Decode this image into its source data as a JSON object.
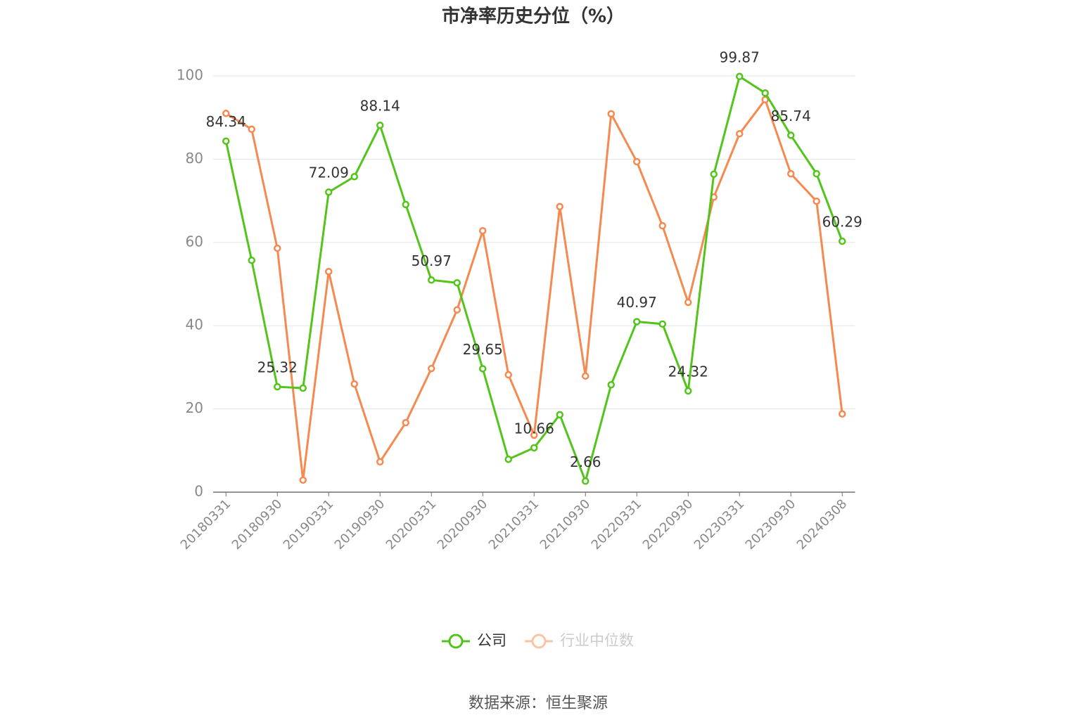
{
  "chart_data": {
    "type": "line",
    "title": "市净率历史分位（%）",
    "source": "数据来源：恒生聚源",
    "categories": [
      "20180331",
      null,
      "20180930",
      null,
      "20190331",
      null,
      "20190930",
      null,
      "20200331",
      null,
      "20200930",
      null,
      "20210331",
      null,
      "20210930",
      null,
      "20220331",
      null,
      "20220930",
      null,
      "20230331",
      null,
      "20230930",
      null,
      "20240308"
    ],
    "series": [
      {
        "name": "公司",
        "color": "#52c41a",
        "values": [
          84.34,
          55.7,
          25.32,
          25.0,
          72.09,
          75.8,
          88.14,
          69.1,
          50.97,
          50.3,
          29.65,
          7.9,
          10.66,
          18.6,
          2.66,
          25.8,
          40.97,
          40.4,
          24.32,
          76.4,
          99.87,
          95.9,
          85.74,
          76.5,
          60.29
        ],
        "value_labels": [
          "84.34",
          null,
          "25.32",
          null,
          "72.09",
          null,
          "88.14",
          null,
          "50.97",
          null,
          "29.65",
          null,
          "10.66",
          null,
          "2.66",
          null,
          "40.97",
          null,
          "24.32",
          null,
          "99.87",
          null,
          "85.74",
          null,
          "60.29"
        ]
      },
      {
        "name": "行业中位数",
        "color": "#f5894f",
        "values": [
          91.0,
          87.2,
          58.6,
          2.9,
          53.0,
          26.0,
          7.3,
          16.7,
          29.7,
          43.8,
          62.8,
          28.2,
          13.7,
          68.6,
          27.9,
          90.9,
          79.4,
          64.0,
          45.6,
          70.9,
          86.1,
          94.3,
          76.5,
          69.9,
          18.8
        ]
      }
    ],
    "ylim": [
      0,
      100
    ],
    "yticks": [
      0,
      20,
      40,
      60,
      80,
      100
    ],
    "grid": true
  }
}
